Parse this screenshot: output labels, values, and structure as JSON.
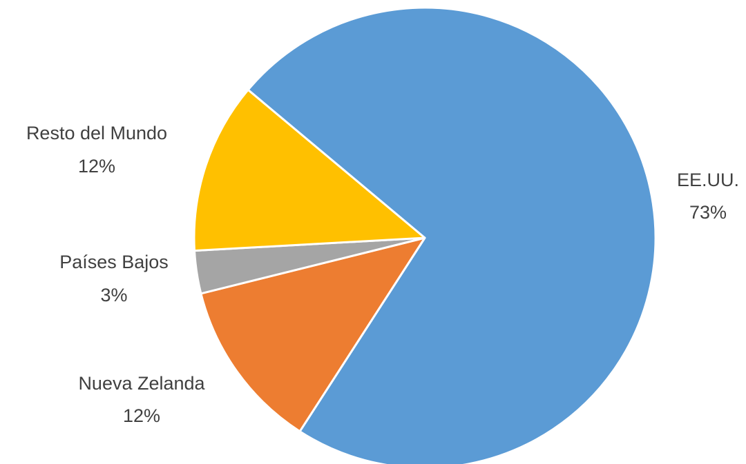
{
  "chart_data": {
    "type": "pie",
    "categories": [
      "EE.UU.",
      "Nueva Zelanda",
      "Países Bajos",
      "Resto del Mundo"
    ],
    "values": [
      73,
      12,
      3,
      12
    ],
    "value_labels": [
      "73%",
      "12%",
      "3%",
      "12%"
    ],
    "colors": [
      "#5b9bd5",
      "#ed7d31",
      "#a5a5a5",
      "#ffc000"
    ]
  }
}
